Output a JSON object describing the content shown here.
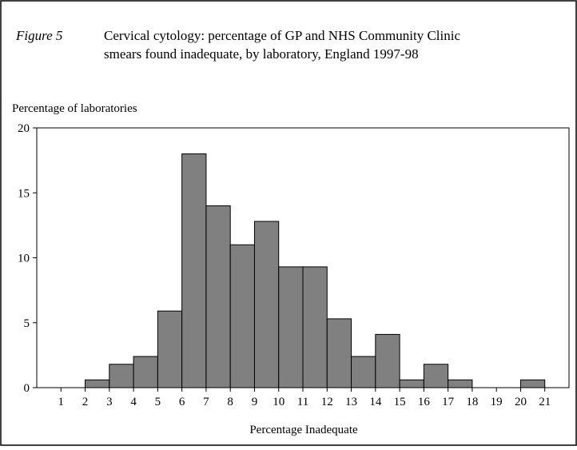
{
  "chart_data": {
    "type": "histogram",
    "figure_label": "Figure 5",
    "title": [
      "Cervical cytology: percentage of GP and NHS Community Clinic",
      "smears found inadequate, by laboratory, England 1997-98"
    ],
    "y_label": "Percentage of laboratories",
    "x_label": "Percentage Inadequate",
    "bins": [
      2,
      3,
      4,
      5,
      6,
      7,
      8,
      9,
      10,
      11,
      12,
      13,
      14,
      15,
      16,
      17,
      18,
      19,
      20,
      21
    ],
    "counts": [
      0.6,
      1.8,
      2.4,
      5.9,
      18,
      14,
      11,
      12.8,
      9.3,
      9.3,
      5.3,
      2.4,
      4.1,
      0.6,
      1.8,
      0.6,
      0,
      0,
      0.6
    ],
    "color": "#808080",
    "xlim": [
      0,
      22
    ],
    "xticks": [
      1,
      2,
      3,
      4,
      5,
      6,
      7,
      8,
      9,
      10,
      11,
      12,
      13,
      14,
      15,
      16,
      17,
      18,
      19,
      20,
      21
    ],
    "ylim": [
      0,
      20
    ],
    "yticks": [
      0,
      5,
      10,
      15,
      20
    ]
  }
}
